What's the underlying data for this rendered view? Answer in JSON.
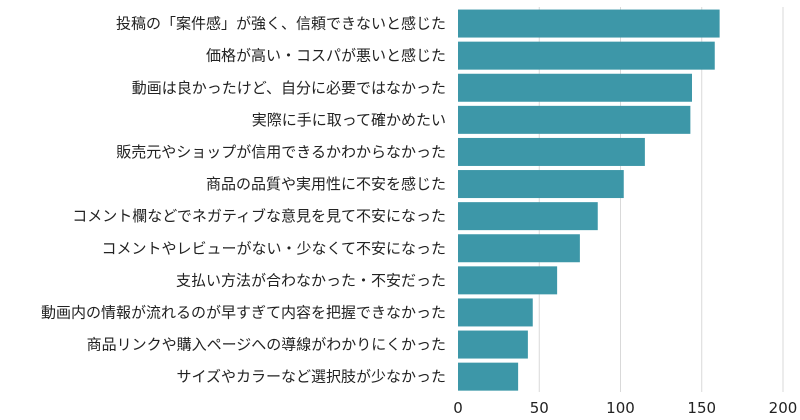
{
  "chart_data": {
    "type": "bar",
    "orientation": "horizontal",
    "categories": [
      "投稿の「案件感」が強く、信頼できないと感じた",
      "価格が高い・コスパが悪いと感じた",
      "動画は良かったけど、自分に必要ではなかった",
      "実際に手に取って確かめたい",
      "販売元やショップが信用できるかわからなかった",
      "商品の品質や実用性に不安を感じた",
      "コメント欄などでネガティブな意見を見て不安になった",
      "コメントやレビューがない・少なくて不安になった",
      "支払い方法が合わなかった・不安だった",
      "動画内の情報が流れるのが早すぎて内容を把握できなかった",
      "商品リンクや購入ページへの導線がわかりにくかった",
      "サイズやカラーなど選択肢が少なかった"
    ],
    "values": [
      161,
      158,
      144,
      143,
      115,
      102,
      86,
      75,
      61,
      46,
      43,
      37
    ],
    "xlim": [
      0,
      200
    ],
    "xticks": [
      0,
      50,
      100,
      150,
      200
    ],
    "grid": "vertical",
    "colors": {
      "bar": "#3d97a8",
      "grid": "#d9d9d9",
      "text": "#222222"
    }
  }
}
